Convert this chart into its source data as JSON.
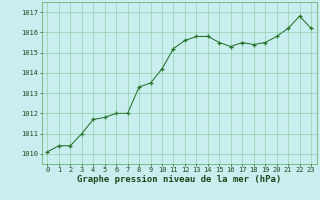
{
  "x": [
    0,
    1,
    2,
    3,
    4,
    5,
    6,
    7,
    8,
    9,
    10,
    11,
    12,
    13,
    14,
    15,
    16,
    17,
    18,
    19,
    20,
    21,
    22,
    23
  ],
  "y": [
    1010.1,
    1010.4,
    1010.4,
    1011.0,
    1011.7,
    1011.8,
    1012.0,
    1012.0,
    1013.3,
    1013.5,
    1014.2,
    1015.2,
    1015.6,
    1015.8,
    1015.8,
    1015.5,
    1015.3,
    1015.5,
    1015.4,
    1015.5,
    1015.8,
    1016.2,
    1016.8,
    1016.2
  ],
  "line_color": "#1a6b1a",
  "marker": "+",
  "bg_color": "#c8eef0",
  "grid_color": "#5aaa5a",
  "text_color": "#1a4a1a",
  "xlabel": "Graphe pression niveau de la mer (hPa)",
  "ylim": [
    1009.5,
    1017.5
  ],
  "yticks": [
    1010,
    1011,
    1012,
    1013,
    1014,
    1015,
    1016,
    1017
  ],
  "xticks": [
    0,
    1,
    2,
    3,
    4,
    5,
    6,
    7,
    8,
    9,
    10,
    11,
    12,
    13,
    14,
    15,
    16,
    17,
    18,
    19,
    20,
    21,
    22,
    23
  ],
  "tick_fontsize": 5.0,
  "xlabel_fontsize": 6.5,
  "xlabel_bold": true
}
